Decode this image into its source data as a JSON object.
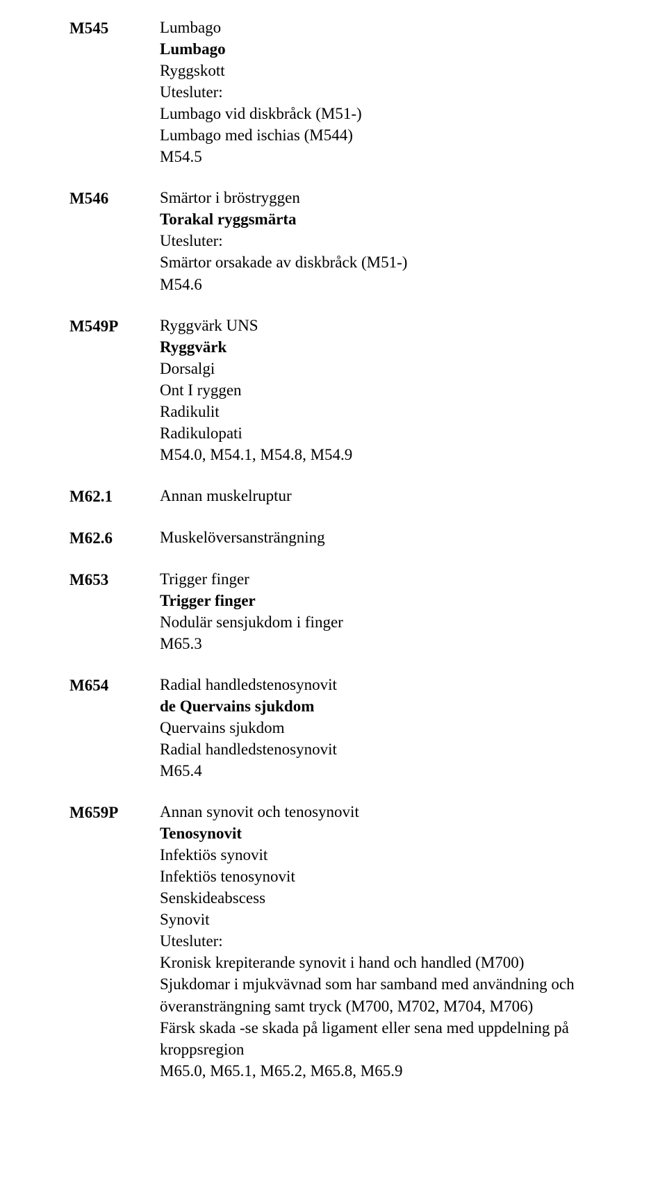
{
  "font": {
    "family": "Times New Roman",
    "title_size_pt": 17,
    "body_size_pt": 17
  },
  "colors": {
    "text": "#000000",
    "background": "#ffffff"
  },
  "entries": [
    {
      "code": "M545",
      "title": "Lumbago",
      "lines": [
        {
          "text": "Lumbago",
          "bold": true
        },
        {
          "text": "Ryggskott"
        },
        {
          "text": "Utesluter:"
        },
        {
          "text": "Lumbago vid diskbråck (M51-)"
        },
        {
          "text": "Lumbago med ischias (M544)"
        },
        {
          "text": "M54.5",
          "small": true
        }
      ]
    },
    {
      "code": "M546",
      "title": "Smärtor i bröstryggen",
      "lines": [
        {
          "text": "Torakal ryggsmärta",
          "bold": true
        },
        {
          "text": "Utesluter:"
        },
        {
          "text": "Smärtor orsakade av diskbråck (M51-)"
        },
        {
          "text": "M54.6",
          "small": true
        }
      ]
    },
    {
      "code": "M549P",
      "title": "Ryggvärk UNS",
      "lines": [
        {
          "text": "Ryggvärk",
          "bold": true
        },
        {
          "text": "Dorsalgi"
        },
        {
          "text": "Ont I ryggen"
        },
        {
          "text": "Radikulit"
        },
        {
          "text": "Radikulopati"
        },
        {
          "text": "M54.0, M54.1, M54.8, M54.9",
          "small": true
        }
      ]
    },
    {
      "code": "M62.1",
      "title": "Annan muskelruptur",
      "lines": []
    },
    {
      "code": "M62.6",
      "title": "Muskelöversansträngning",
      "lines": []
    },
    {
      "code": "M653",
      "title": "Trigger finger",
      "lines": [
        {
          "text": "Trigger finger",
          "bold": true
        },
        {
          "text": "Nodulär sensjukdom i finger"
        },
        {
          "text": "M65.3",
          "small": true
        }
      ]
    },
    {
      "code": "M654",
      "title": "Radial handledstenosynovit",
      "lines": [
        {
          "text": "de Quervains sjukdom",
          "bold": true
        },
        {
          "text": "Quervains sjukdom"
        },
        {
          "text": "Radial handledstenosynovit"
        },
        {
          "text": "M65.4",
          "small": true
        }
      ]
    },
    {
      "code": "M659P",
      "title": "Annan synovit och tenosynovit",
      "lines": [
        {
          "text": "Tenosynovit",
          "bold": true
        },
        {
          "text": "Infektiös synovit"
        },
        {
          "text": "Infektiös tenosynovit"
        },
        {
          "text": "Senskideabscess"
        },
        {
          "text": "Synovit"
        },
        {
          "text": "Utesluter:"
        },
        {
          "text": "Kronisk krepiterande synovit i hand och handled (M700)"
        },
        {
          "text": "Sjukdomar i mjukvävnad som har samband med användning och överansträngning samt tryck (M700, M702, M704, M706)"
        },
        {
          "text": "Färsk skada -se skada på ligament eller sena med uppdelning på kroppsregion"
        },
        {
          "text": "M65.0, M65.1, M65.2, M65.8, M65.9",
          "small": true
        }
      ]
    }
  ]
}
